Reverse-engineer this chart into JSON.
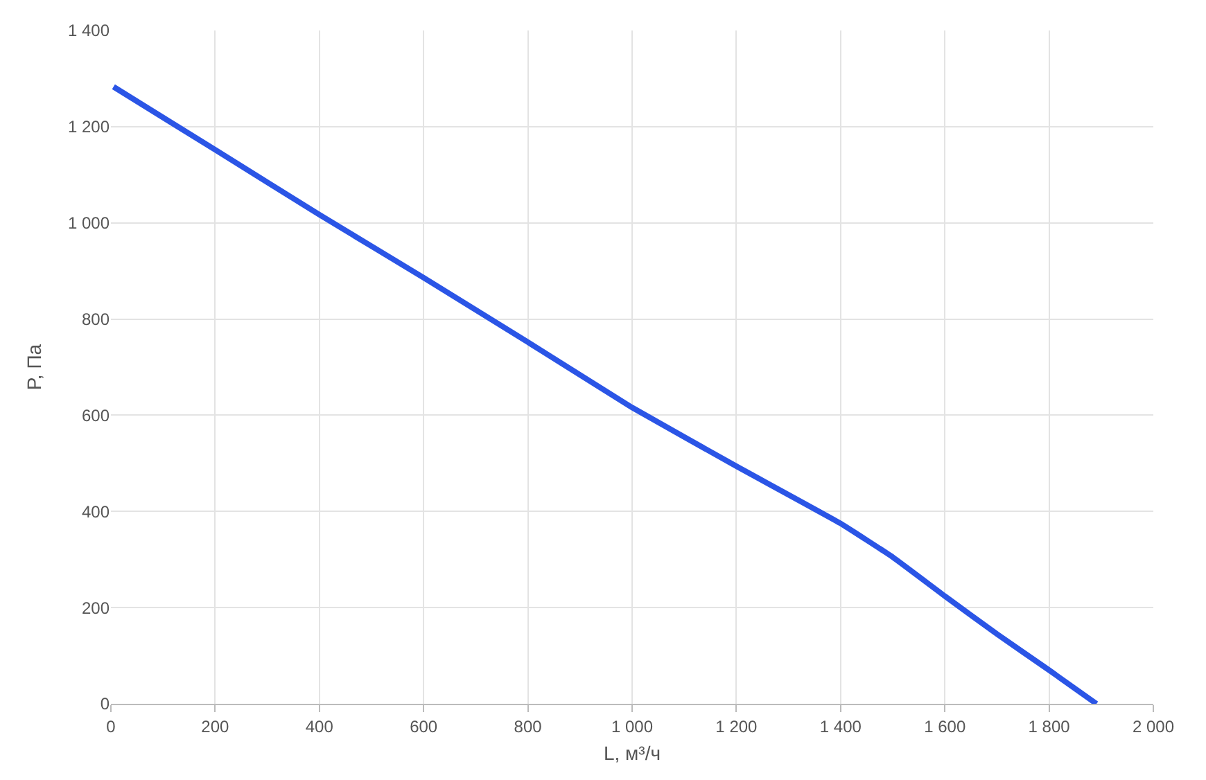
{
  "chart_data": {
    "type": "line",
    "xlabel": "L, м³/ч",
    "ylabel": "P, Па",
    "x": [
      5,
      200,
      400,
      600,
      800,
      1000,
      1200,
      1400,
      1500,
      1600,
      1700,
      1800,
      1891
    ],
    "series": [
      {
        "color": "#2b55e6",
        "values": [
          1283,
          1152,
          1017,
          886,
          752,
          616,
          494,
          375,
          305,
          224,
          145,
          70,
          0
        ]
      }
    ],
    "xlim": [
      0,
      2000
    ],
    "ylim": [
      0,
      1400
    ],
    "xticks": [
      0,
      200,
      400,
      600,
      800,
      {
        "value": 1000,
        "label": "1 000"
      },
      {
        "value": 1200,
        "label": "1 200"
      },
      {
        "value": 1400,
        "label": "1 400"
      },
      {
        "value": 1600,
        "label": "1 600"
      },
      {
        "value": 1800,
        "label": "1 800"
      },
      {
        "value": 2000,
        "label": "2 000"
      }
    ],
    "yticks": [
      0,
      200,
      400,
      600,
      800,
      {
        "value": 1000,
        "label": "1 000"
      },
      {
        "value": 1200,
        "label": "1 200"
      },
      {
        "value": 1400,
        "label": "1 400"
      }
    ],
    "grid": true,
    "legend": false,
    "marker": "none",
    "line_style": "solid"
  }
}
